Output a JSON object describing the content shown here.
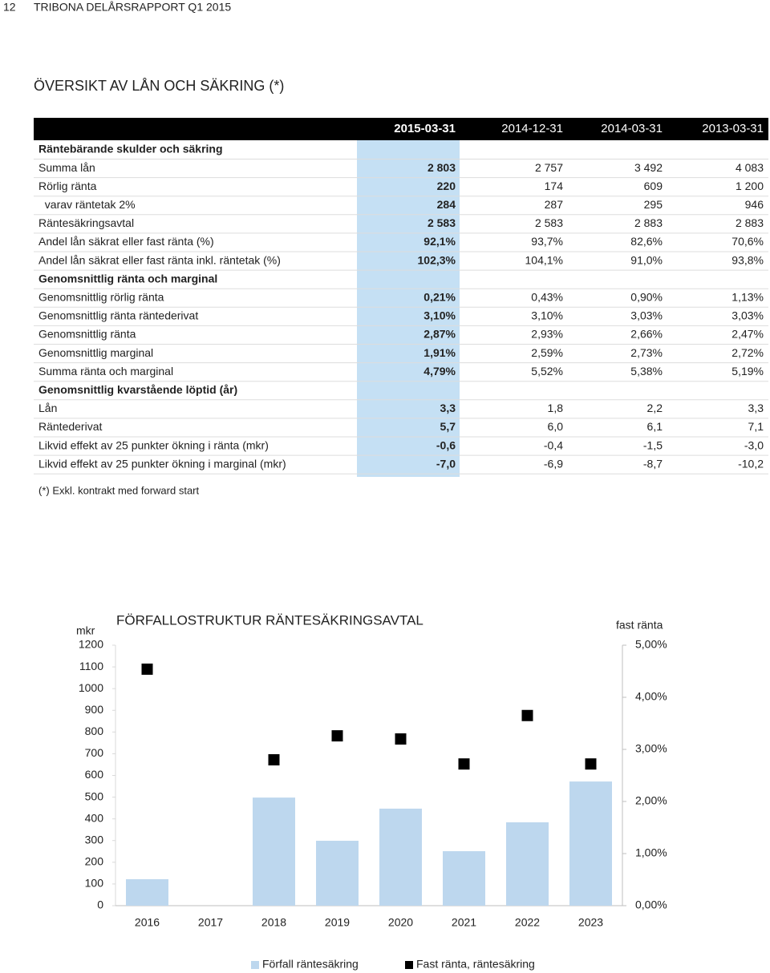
{
  "header": {
    "page_number": "12",
    "running_title": "TRIBONA DELÅRSRAPPORT Q1 2015"
  },
  "title": "ÖVERSIKT AV LÅN OCH SÄKRING (*)",
  "table": {
    "columns": [
      "2015-03-31",
      "2014-12-31",
      "2014-03-31",
      "2013-03-31"
    ],
    "sections": [
      {
        "title": "Räntebärande skulder och säkring",
        "rows": [
          {
            "label": "Summa lån",
            "cells": [
              "2 803",
              "2 757",
              "3 492",
              "4 083"
            ]
          },
          {
            "label": "Rörlig ränta",
            "cells": [
              "220",
              "174",
              "609",
              "1 200"
            ]
          },
          {
            "label": "  varav räntetak 2%",
            "cells": [
              "284",
              "287",
              "295",
              "946"
            ]
          },
          {
            "label": "Räntesäkringsavtal",
            "cells": [
              "2 583",
              "2 583",
              "2 883",
              "2 883"
            ]
          },
          {
            "label": "Andel lån säkrat eller fast ränta (%)",
            "cells": [
              "92,1%",
              "93,7%",
              "82,6%",
              "70,6%"
            ]
          },
          {
            "label": "Andel lån säkrat eller fast ränta inkl. räntetak (%)",
            "cells": [
              "102,3%",
              "104,1%",
              "91,0%",
              "93,8%"
            ]
          }
        ]
      },
      {
        "title": "Genomsnittlig ränta och marginal",
        "rows": [
          {
            "label": "Genomsnittlig rörlig ränta",
            "cells": [
              "0,21%",
              "0,43%",
              "0,90%",
              "1,13%"
            ]
          },
          {
            "label": "Genomsnittlig ränta räntederivat",
            "cells": [
              "3,10%",
              "3,10%",
              "3,03%",
              "3,03%"
            ]
          },
          {
            "label": "Genomsnittlig ränta",
            "cells": [
              "2,87%",
              "2,93%",
              "2,66%",
              "2,47%"
            ]
          },
          {
            "label": "Genomsnittlig marginal",
            "cells": [
              "1,91%",
              "2,59%",
              "2,73%",
              "2,72%"
            ]
          },
          {
            "label": "Summa ränta och marginal",
            "cells": [
              "4,79%",
              "5,52%",
              "5,38%",
              "5,19%"
            ]
          }
        ]
      },
      {
        "title": "Genomsnittlig kvarstående löptid (år)",
        "rows": [
          {
            "label": "Lån",
            "cells": [
              "3,3",
              "1,8",
              "2,2",
              "3,3"
            ]
          },
          {
            "label": "Räntederivat",
            "cells": [
              "5,7",
              "6,0",
              "6,1",
              "7,1"
            ]
          },
          {
            "label": "Likvid effekt av 25 punkter ökning i ränta (mkr)",
            "cells": [
              "-0,6",
              "-0,4",
              "-1,5",
              "-3,0"
            ]
          },
          {
            "label": "Likvid effekt av 25 punkter ökning i marginal (mkr)",
            "cells": [
              "-7,0",
              "-6,9",
              "-8,7",
              "-10,2"
            ]
          }
        ]
      }
    ]
  },
  "footnote": "(*) Exkl. kontrakt med forward start",
  "chart_data": {
    "type": "bar",
    "title": "FÖRFALLOSTRUKTUR RÄNTESÄKRINGSAVTAL",
    "y_label": "mkr",
    "y2_label": "fast ränta",
    "categories": [
      "2016",
      "2017",
      "2018",
      "2019",
      "2020",
      "2021",
      "2022",
      "2023"
    ],
    "series": [
      {
        "name": "Förfall räntesäkring",
        "type": "bar",
        "color": "#bdd7ee",
        "values": [
          122,
          null,
          498,
          299,
          447,
          251,
          384,
          572
        ]
      },
      {
        "name": "Fast ränta, räntesäkring",
        "type": "scatter",
        "axis": "y2",
        "color": "#000000",
        "values": [
          4.54,
          null,
          2.8,
          3.26,
          3.2,
          2.72,
          3.65,
          2.72
        ]
      }
    ],
    "ylim": [
      0,
      1200
    ],
    "yticks": [
      0,
      100,
      200,
      300,
      400,
      500,
      600,
      700,
      800,
      900,
      1000,
      1100,
      1200
    ],
    "y2lim": [
      0,
      5
    ],
    "y2ticks": [
      {
        "value": 0,
        "label": "0,00%"
      },
      {
        "value": 1,
        "label": "1,00%"
      },
      {
        "value": 2,
        "label": "2,00%"
      },
      {
        "value": 3,
        "label": "3,00%"
      },
      {
        "value": 4,
        "label": "4,00%"
      },
      {
        "value": 5,
        "label": "5,00%"
      }
    ]
  }
}
